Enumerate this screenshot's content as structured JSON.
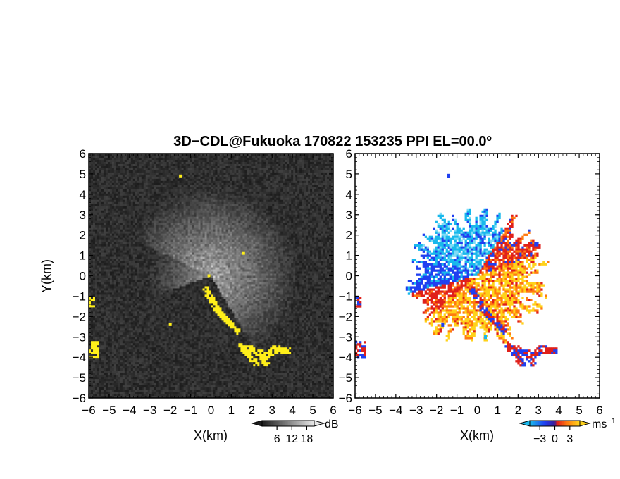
{
  "title": "3D−CDL@Fukuoka 170822 153235 PPI EL=00.0º",
  "colors": {
    "echo_yellow": "#ffef1a",
    "vel_dark_blue": "#1f3ff0",
    "vel_cyan": "#18b8ec",
    "vel_light_cyan": "#7fdcf6",
    "vel_red": "#e0201a",
    "vel_orange": "#ff7a10",
    "vel_yellow": "#ffd21a"
  },
  "chart_data": [
    {
      "type": "heatmap",
      "name": "reflectivity",
      "xlabel": "X(km)",
      "ylabel": "Y(km)",
      "xlim": [
        -6,
        6
      ],
      "ylim": [
        -6,
        6
      ],
      "x_ticks": [
        "−6",
        "−5",
        "−4",
        "−3",
        "−2",
        "−1",
        "0",
        "1",
        "2",
        "3",
        "4",
        "5",
        "6"
      ],
      "y_ticks": [
        "−6",
        "−5",
        "−4",
        "−3",
        "−2",
        "−1",
        "0",
        "1",
        "2",
        "3",
        "4",
        "5",
        "6"
      ],
      "colorbar": {
        "unit": "dB",
        "ticks": [
          "6",
          "12",
          "18"
        ],
        "tick_values": [
          6,
          12,
          18
        ],
        "range": [
          0,
          21
        ]
      }
    },
    {
      "type": "heatmap",
      "name": "doppler_velocity",
      "xlabel": "X(km)",
      "xlim": [
        -6,
        6
      ],
      "ylim": [
        -6,
        6
      ],
      "x_ticks": [
        "−6",
        "−5",
        "−4",
        "−3",
        "−2",
        "−1",
        "0",
        "1",
        "2",
        "3",
        "4",
        "5",
        "6"
      ],
      "y_ticks": [
        "−6",
        "−5",
        "−4",
        "−3",
        "−2",
        "−1",
        "0",
        "1",
        "2",
        "3",
        "4",
        "5",
        "6"
      ],
      "colorbar": {
        "unit": "ms",
        "unit_exp": "−1",
        "ticks": [
          "−3",
          "0",
          "3"
        ],
        "tick_values": [
          -3,
          0,
          3
        ],
        "range": [
          -5,
          5
        ]
      }
    }
  ]
}
